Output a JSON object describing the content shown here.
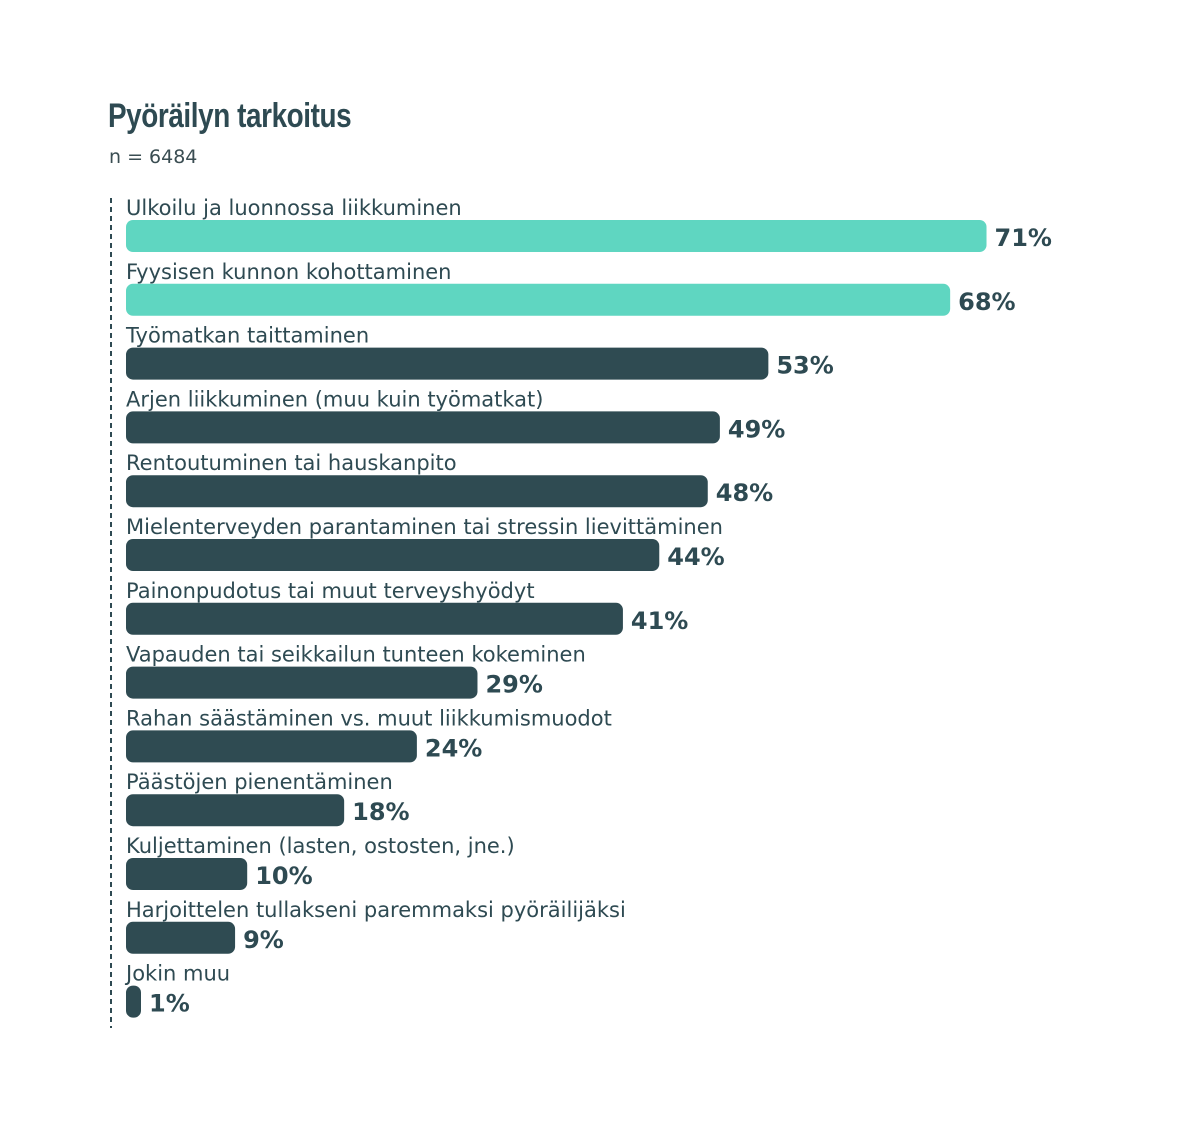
{
  "chart_data": {
    "type": "bar",
    "orientation": "horizontal",
    "title": "Pyöräilyn tarkoitus",
    "subtitle": "n = 6484",
    "value_suffix": "%",
    "categories": [
      "Ulkoilu ja luonnossa liikkuminen",
      "Fyysisen kunnon kohottaminen",
      "Työmatkan taittaminen",
      "Arjen liikkuminen (muu kuin työmatkat)",
      "Rentoutuminen tai hauskanpito",
      "Mielenterveyden parantaminen tai stressin lievittäminen",
      "Painonpudotus tai muut terveyshyödyt",
      "Vapauden tai seikkailun tunteen kokeminen",
      "Rahan säästäminen vs. muut liikkumismuodot",
      "Päästöjen pienentäminen",
      "Kuljettaminen (lasten, ostosten, jne.)",
      "Harjoittelen tullakseni paremmaksi pyöräilijäksi",
      "Jokin muu"
    ],
    "values": [
      71,
      68,
      53,
      49,
      48,
      44,
      41,
      29,
      24,
      18,
      10,
      9,
      1
    ],
    "highlighted_indices": [
      0,
      1
    ],
    "colors": {
      "highlight": "#5fd6c1",
      "default": "#2f4b52",
      "text": "#2e4a52",
      "axis": "#2e4a52"
    },
    "legend": "none",
    "grid": false
  }
}
